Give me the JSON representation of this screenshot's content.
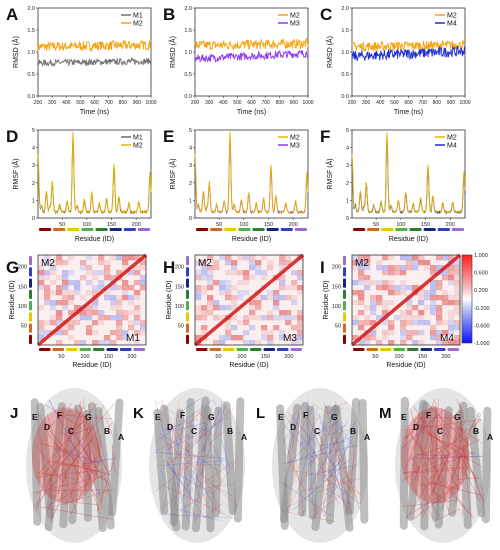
{
  "colors": {
    "M1": "#707070",
    "M2": "#f5a310",
    "M3": "#8f3ef0",
    "M4": "#1f2fd0",
    "rmsf_M2": "#e8b000",
    "rmsf_M1": "#6a6a50",
    "cmap_pos": "#d62424",
    "cmap_neg": "#1c2ff0",
    "protein": "#8a8a8a"
  },
  "rmsd_panels": [
    {
      "label": "A",
      "ylabel": "RMSD (Å)",
      "xlabel": "Time (ns)",
      "legend": [
        "M1",
        "M2"
      ],
      "series": [
        {
          "name": "M2",
          "color_key": "M2",
          "mean": 1.12,
          "noise": 0.11
        },
        {
          "name": "M1",
          "color_key": "M1",
          "mean": 0.75,
          "noise": 0.07
        }
      ]
    },
    {
      "label": "B",
      "ylabel": "RMSD (Å)",
      "xlabel": "Time (ns)",
      "legend": [
        "M2",
        "M3"
      ],
      "series": [
        {
          "name": "M2",
          "color_key": "M2",
          "mean": 1.15,
          "noise": 0.11
        },
        {
          "name": "M3",
          "color_key": "M3",
          "mean": 0.85,
          "noise": 0.09
        }
      ]
    },
    {
      "label": "C",
      "ylabel": "RMSD (Å)",
      "xlabel": "Time (ns)",
      "legend": [
        "M2",
        "M4"
      ],
      "series": [
        {
          "name": "M2",
          "color_key": "M2",
          "mean": 1.12,
          "noise": 0.11
        },
        {
          "name": "M4",
          "color_key": "M4",
          "mean": 0.9,
          "noise": 0.12
        }
      ]
    }
  ],
  "rmsd_axes": {
    "x_ticks": [
      "200",
      "300",
      "400",
      "500",
      "600",
      "700",
      "800",
      "900",
      "1000"
    ],
    "y_ticks": [
      "0.0",
      "0.5",
      "1.0",
      "1.5",
      "2.0"
    ],
    "xlim": [
      200,
      1000
    ],
    "ylim": [
      0,
      2
    ]
  },
  "rmsf_panels": [
    {
      "label": "D",
      "ylabel": "RMSF (Å)",
      "xlabel": "Residue (ID)",
      "legend": [
        "M1",
        "M2"
      ],
      "series": [
        {
          "name": "M1",
          "color_key": "rmsf_M1"
        },
        {
          "name": "M2",
          "color_key": "rmsf_M2"
        }
      ]
    },
    {
      "label": "E",
      "ylabel": "RMSF (Å)",
      "xlabel": "Residue (ID)",
      "legend": [
        "M2",
        "M3"
      ],
      "series": [
        {
          "name": "M3",
          "color_key": "M3"
        },
        {
          "name": "M2",
          "color_key": "rmsf_M2"
        }
      ]
    },
    {
      "label": "F",
      "ylabel": "RMSF (Å)",
      "xlabel": "Residue (ID)",
      "legend": [
        "M2",
        "M4"
      ],
      "series": [
        {
          "name": "M4",
          "color_key": "M4"
        },
        {
          "name": "M2",
          "color_key": "rmsf_M2"
        }
      ]
    }
  ],
  "rmsf_axes": {
    "x_ticks": [
      "50",
      "100",
      "150",
      "200"
    ],
    "y_ticks": [
      "0",
      "1",
      "2",
      "3",
      "4",
      "5"
    ],
    "xlim": [
      1,
      230
    ],
    "ylim": [
      0,
      5
    ],
    "peaks": [
      [
        1,
        3.6
      ],
      [
        8,
        0.7
      ],
      [
        18,
        1.5
      ],
      [
        25,
        0.6
      ],
      [
        30,
        2.0
      ],
      [
        45,
        0.7
      ],
      [
        60,
        0.9
      ],
      [
        72,
        4.8
      ],
      [
        80,
        0.7
      ],
      [
        95,
        1.0
      ],
      [
        110,
        1.4
      ],
      [
        125,
        0.8
      ],
      [
        140,
        1.1
      ],
      [
        155,
        3.0
      ],
      [
        165,
        1.2
      ],
      [
        185,
        0.8
      ],
      [
        205,
        0.9
      ],
      [
        228,
        2.6
      ]
    ]
  },
  "helix_colors": [
    "#8b0000",
    "#d2691e",
    "#e8c800",
    "#4caf50",
    "#2e7d32",
    "#1a237e",
    "#303fc4",
    "#9c6bd1"
  ],
  "cmap_panels": [
    {
      "label": "G",
      "top_model": "M2",
      "bottom_model": "M1"
    },
    {
      "label": "H",
      "top_model": "M2",
      "bottom_model": "M3"
    },
    {
      "label": "I",
      "top_model": "M2",
      "bottom_model": "M4"
    }
  ],
  "cmap_axes": {
    "xlabel": "Residue (ID)",
    "ylabel": "Residue (ID)",
    "x_ticks": [
      "50",
      "100",
      "150",
      "200"
    ],
    "y_ticks": [
      "50",
      "100",
      "150",
      "200"
    ]
  },
  "colorbar": {
    "labels": [
      "1.000",
      "0.600",
      "0.200",
      "-0.200",
      "-0.600",
      "-1.000"
    ]
  },
  "structure_panels": [
    {
      "label": "J",
      "helices": [
        "E",
        "D",
        "F",
        "C",
        "G",
        "B",
        "A"
      ],
      "tone": "red"
    },
    {
      "label": "K",
      "helices": [
        "E",
        "D",
        "F",
        "C",
        "G",
        "B",
        "A"
      ],
      "tone": "mixed"
    },
    {
      "label": "L",
      "helices": [
        "E",
        "D",
        "F",
        "C",
        "G",
        "B",
        "A"
      ],
      "tone": "mixed"
    },
    {
      "label": "M",
      "helices": [
        "E",
        "D",
        "F",
        "C",
        "G",
        "B",
        "A"
      ],
      "tone": "red"
    }
  ]
}
